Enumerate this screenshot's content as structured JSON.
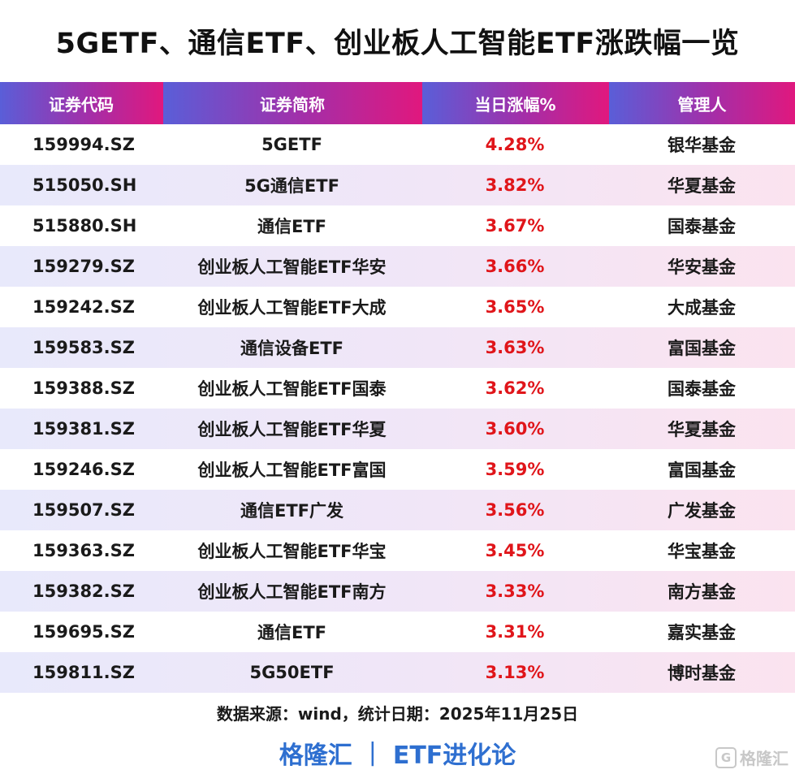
{
  "title": "5GETF、通信ETF、创业板人工智能ETF涨跌幅一览",
  "columns": [
    "证券代码",
    "证券简称",
    "当日涨幅%",
    "管理人"
  ],
  "rows": [
    {
      "code": "159994.SZ",
      "name": "5GETF",
      "change": "4.28%",
      "manager": "银华基金"
    },
    {
      "code": "515050.SH",
      "name": "5G通信ETF",
      "change": "3.82%",
      "manager": "华夏基金"
    },
    {
      "code": "515880.SH",
      "name": "通信ETF",
      "change": "3.67%",
      "manager": "国泰基金"
    },
    {
      "code": "159279.SZ",
      "name": "创业板人工智能ETF华安",
      "change": "3.66%",
      "manager": "华安基金"
    },
    {
      "code": "159242.SZ",
      "name": "创业板人工智能ETF大成",
      "change": "3.65%",
      "manager": "大成基金"
    },
    {
      "code": "159583.SZ",
      "name": "通信设备ETF",
      "change": "3.63%",
      "manager": "富国基金"
    },
    {
      "code": "159388.SZ",
      "name": "创业板人工智能ETF国泰",
      "change": "3.62%",
      "manager": "国泰基金"
    },
    {
      "code": "159381.SZ",
      "name": "创业板人工智能ETF华夏",
      "change": "3.60%",
      "manager": "华夏基金"
    },
    {
      "code": "159246.SZ",
      "name": "创业板人工智能ETF富国",
      "change": "3.59%",
      "manager": "富国基金"
    },
    {
      "code": "159507.SZ",
      "name": "通信ETF广发",
      "change": "3.56%",
      "manager": "广发基金"
    },
    {
      "code": "159363.SZ",
      "name": "创业板人工智能ETF华宝",
      "change": "3.45%",
      "manager": "华宝基金"
    },
    {
      "code": "159382.SZ",
      "name": "创业板人工智能ETF南方",
      "change": "3.33%",
      "manager": "南方基金"
    },
    {
      "code": "159695.SZ",
      "name": "通信ETF",
      "change": "3.31%",
      "manager": "嘉实基金"
    },
    {
      "code": "159811.SZ",
      "name": "5G50ETF",
      "change": "3.13%",
      "manager": "博时基金"
    }
  ],
  "source": "数据来源：wind，统计日期：2025年11月25日",
  "footer": {
    "brand": "格隆汇",
    "separator": "|",
    "column": "ETF进化论"
  },
  "watermark": {
    "icon_glyph": "G",
    "text": "格隆汇"
  },
  "colors": {
    "header_gradient": [
      "#5a5ed8",
      "#a42ea8",
      "#e0187e"
    ],
    "change_text": "#e0151a",
    "footer_text": "#2e6fd0"
  }
}
